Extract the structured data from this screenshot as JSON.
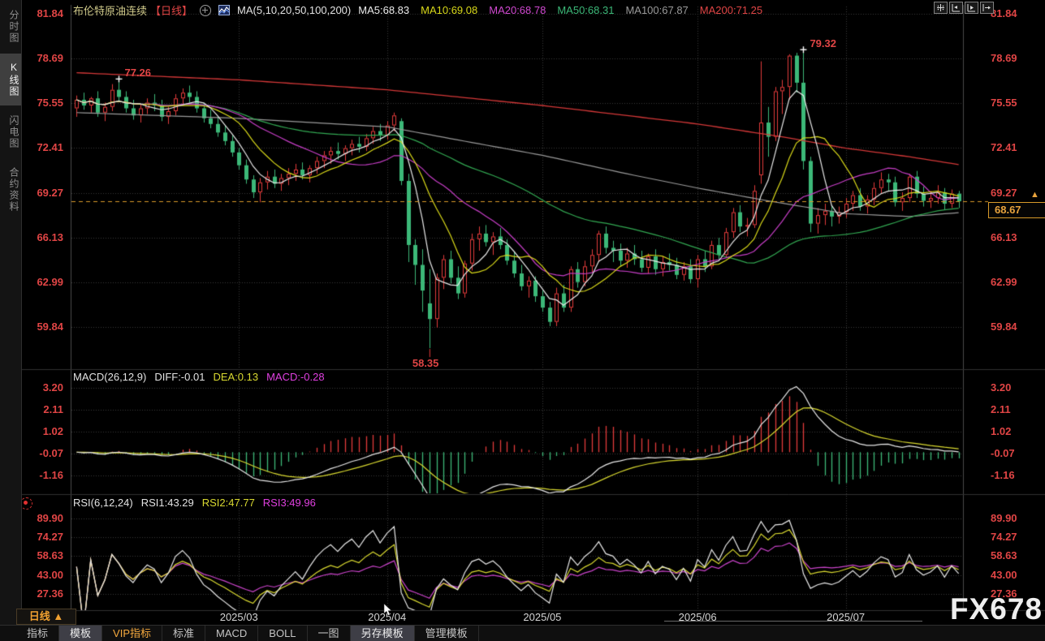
{
  "header": {
    "symbol": "布伦特原油连续",
    "period_tag": "【日线】",
    "ma_params": "MA(5,10,20,50,100,200)",
    "ma_values": [
      {
        "text": "MA5:68.83",
        "color": "#ececec"
      },
      {
        "text": "MA10:69.08",
        "color": "#d9d919"
      },
      {
        "text": "MA20:68.78",
        "color": "#d048d0"
      },
      {
        "text": "MA50:68.31",
        "color": "#3cb878"
      },
      {
        "text": "MA100:67.87",
        "color": "#9a9a9a"
      },
      {
        "text": "MA200:71.25",
        "color": "#e04545"
      }
    ],
    "window_controls": [
      "move-chart-icon",
      "compress-left-icon",
      "compress-right-icon",
      "shift-data-icon"
    ]
  },
  "sidebar": {
    "items": [
      {
        "label": "分时图",
        "active": false
      },
      {
        "label": "K线图",
        "active": true
      },
      {
        "label": "闪电图",
        "active": false
      },
      {
        "label": "合约资料",
        "active": false
      }
    ]
  },
  "toolbar": {
    "tabs": [
      {
        "label": "指标",
        "active": false,
        "accent": false
      },
      {
        "label": "模板",
        "active": true,
        "accent": false
      },
      {
        "label": "VIP指标",
        "active": false,
        "accent": true
      },
      {
        "label": "标准",
        "active": false,
        "accent": false
      },
      {
        "label": "MACD",
        "active": false,
        "accent": false
      },
      {
        "label": "BOLL",
        "active": false,
        "accent": false
      },
      {
        "label": "一图",
        "active": false,
        "accent": false
      },
      {
        "label": "另存模板",
        "active": true,
        "accent": false
      },
      {
        "label": "管理模板",
        "active": false,
        "accent": false
      }
    ]
  },
  "period_selector": {
    "label": "日线",
    "arrow": "▲"
  },
  "watermark": "FX678",
  "colors": {
    "up": "#e23b3b",
    "down": "#3cb878",
    "axis_text": "#e04545",
    "last_price": "#d89a2a",
    "grid": "#3a3a3a",
    "ma5": "#e8e8e8",
    "ma10": "#d9d919",
    "ma20": "#c73ec7",
    "ma50": "#32a852",
    "ma100": "#9a9a9a",
    "ma200": "#d43838",
    "diff_line": "#e8e8e8",
    "dea_line": "#d9d930",
    "rsi1": "#e8e8e8",
    "rsi2": "#d9d930",
    "rsi3": "#cc44cc"
  },
  "chart_data": {
    "type": "candlestick",
    "title": "布伦特原油连续 日线",
    "ylim": [
      59.84,
      81.84
    ],
    "main_axis_labels": [
      "81.84",
      "78.69",
      "75.55",
      "72.41",
      "69.27",
      "66.13",
      "62.99",
      "59.84"
    ],
    "main_axis_values": [
      81.84,
      78.69,
      75.55,
      72.41,
      69.27,
      66.13,
      62.99,
      59.84
    ],
    "macd_axis_labels": [
      "3.20",
      "2.11",
      "1.02",
      "-0.07",
      "-1.16"
    ],
    "macd_axis_values": [
      3.2,
      2.11,
      1.02,
      -0.07,
      -1.16
    ],
    "rsi_axis_labels": [
      "89.90",
      "74.27",
      "58.63",
      "43.00",
      "27.36"
    ],
    "rsi_axis_values": [
      89.9,
      74.27,
      58.63,
      43.0,
      27.36
    ],
    "x_ticks": [
      {
        "index": 23,
        "label": "2025/03"
      },
      {
        "index": 44,
        "label": "2025/04"
      },
      {
        "index": 66,
        "label": "2025/05"
      },
      {
        "index": 88,
        "label": "2025/06"
      },
      {
        "index": 109,
        "label": "2025/07"
      }
    ],
    "ma_periods": [
      5,
      10,
      20,
      50
    ],
    "ma100_keypoints": [
      [
        0,
        74.9
      ],
      [
        23,
        74.5
      ],
      [
        44,
        73.9
      ],
      [
        56,
        72.8
      ],
      [
        66,
        71.9
      ],
      [
        78,
        70.6
      ],
      [
        88,
        69.6
      ],
      [
        98,
        68.7
      ],
      [
        109,
        67.8
      ],
      [
        118,
        67.6
      ],
      [
        125,
        67.87
      ]
    ],
    "ma200_keypoints": [
      [
        0,
        77.7
      ],
      [
        23,
        77.2
      ],
      [
        44,
        76.5
      ],
      [
        66,
        75.4
      ],
      [
        88,
        74.1
      ],
      [
        100,
        73.2
      ],
      [
        109,
        72.4
      ],
      [
        118,
        71.8
      ],
      [
        125,
        71.25
      ]
    ],
    "annotations": {
      "high1": {
        "index": 6,
        "price": 77.26,
        "label": "77.26"
      },
      "high2": {
        "index": 103,
        "price": 79.32,
        "label": "79.32"
      },
      "low": {
        "index": 50,
        "price": 58.35,
        "label": "58.35"
      }
    },
    "last_price": {
      "value": 68.67,
      "label": "68.67"
    },
    "macd_panel": {
      "title": "MACD(26,12,9)",
      "params": [
        26,
        12,
        9
      ],
      "diff_label": "DIFF:-0.01",
      "dea_label": "DEA:0.13",
      "macd_label": "MACD:-0.28",
      "diff": -0.01,
      "dea": 0.13,
      "macd": -0.28
    },
    "rsi_panel": {
      "title": "RSI(6,12,24)",
      "periods": [
        6,
        12,
        24
      ],
      "labels": [
        "RSI1:43.29",
        "RSI2:47.77",
        "RSI3:49.96"
      ],
      "values": [
        43.29,
        47.77,
        49.96
      ]
    },
    "candles": [
      [
        75.2,
        76.1,
        74.6,
        75.8
      ],
      [
        75.8,
        76.3,
        75.1,
        75.4
      ],
      [
        75.4,
        76.0,
        74.9,
        75.9
      ],
      [
        75.9,
        76.4,
        74.6,
        74.9
      ],
      [
        74.9,
        75.6,
        74.3,
        75.3
      ],
      [
        75.3,
        76.9,
        75.0,
        76.5
      ],
      [
        76.5,
        77.26,
        75.7,
        76.0
      ],
      [
        76.0,
        76.4,
        74.9,
        75.2
      ],
      [
        75.2,
        75.8,
        74.4,
        74.7
      ],
      [
        74.7,
        75.5,
        74.2,
        75.2
      ],
      [
        75.2,
        75.9,
        74.8,
        75.6
      ],
      [
        75.6,
        76.2,
        75.0,
        75.4
      ],
      [
        75.4,
        75.8,
        74.3,
        74.6
      ],
      [
        74.6,
        75.3,
        74.1,
        75.0
      ],
      [
        75.0,
        76.2,
        74.7,
        75.9
      ],
      [
        75.9,
        76.6,
        75.4,
        76.3
      ],
      [
        76.3,
        76.8,
        75.6,
        76.0
      ],
      [
        76.0,
        76.4,
        74.9,
        75.2
      ],
      [
        75.2,
        75.6,
        74.2,
        74.5
      ],
      [
        74.5,
        75.1,
        73.8,
        74.1
      ],
      [
        74.1,
        74.6,
        73.2,
        73.5
      ],
      [
        73.5,
        74.0,
        72.6,
        72.9
      ],
      [
        72.9,
        73.3,
        71.8,
        72.1
      ],
      [
        72.1,
        72.4,
        70.9,
        71.2
      ],
      [
        71.2,
        71.6,
        69.9,
        70.2
      ],
      [
        70.2,
        70.5,
        68.9,
        69.3
      ],
      [
        69.3,
        70.3,
        68.6,
        70.0
      ],
      [
        70.0,
        70.8,
        69.5,
        70.4
      ],
      [
        70.4,
        70.9,
        69.6,
        69.9
      ],
      [
        69.9,
        70.6,
        69.4,
        70.3
      ],
      [
        70.3,
        71.0,
        69.8,
        70.6
      ],
      [
        70.6,
        71.3,
        70.1,
        70.9
      ],
      [
        70.9,
        71.4,
        70.2,
        70.5
      ],
      [
        70.5,
        71.2,
        70.0,
        71.0
      ],
      [
        71.0,
        71.8,
        70.6,
        71.5
      ],
      [
        71.5,
        72.2,
        71.0,
        71.9
      ],
      [
        71.9,
        72.5,
        71.3,
        72.2
      ],
      [
        72.2,
        72.8,
        71.6,
        72.0
      ],
      [
        72.0,
        72.6,
        71.5,
        72.4
      ],
      [
        72.4,
        73.0,
        71.9,
        72.7
      ],
      [
        72.7,
        73.2,
        72.1,
        72.5
      ],
      [
        72.5,
        73.4,
        72.2,
        73.1
      ],
      [
        73.1,
        73.9,
        72.7,
        73.6
      ],
      [
        73.6,
        74.1,
        72.9,
        73.3
      ],
      [
        73.3,
        74.3,
        73.0,
        74.0
      ],
      [
        74.0,
        74.9,
        73.6,
        74.7
      ],
      [
        74.3,
        74.5,
        69.8,
        70.1
      ],
      [
        70.1,
        70.6,
        64.4,
        65.6
      ],
      [
        65.6,
        66.0,
        62.8,
        64.2
      ],
      [
        64.2,
        65.3,
        60.9,
        62.4
      ],
      [
        61.5,
        63.9,
        58.35,
        60.4
      ],
      [
        60.4,
        63.6,
        59.8,
        63.3
      ],
      [
        63.3,
        64.9,
        62.5,
        64.6
      ],
      [
        64.6,
        65.2,
        62.9,
        63.3
      ],
      [
        63.3,
        64.1,
        61.8,
        62.2
      ],
      [
        62.2,
        64.5,
        61.9,
        64.3
      ],
      [
        64.3,
        66.4,
        63.8,
        66.0
      ],
      [
        66.0,
        66.9,
        65.2,
        66.4
      ],
      [
        66.4,
        67.0,
        65.5,
        65.8
      ],
      [
        65.8,
        66.5,
        64.9,
        66.2
      ],
      [
        66.2,
        66.8,
        65.3,
        65.6
      ],
      [
        65.6,
        66.0,
        64.2,
        64.5
      ],
      [
        64.5,
        65.1,
        63.3,
        63.6
      ],
      [
        63.6,
        64.2,
        62.4,
        62.7
      ],
      [
        62.7,
        63.4,
        61.9,
        63.1
      ],
      [
        63.1,
        63.4,
        61.6,
        62.0
      ],
      [
        62.0,
        62.4,
        60.9,
        61.2
      ],
      [
        61.2,
        61.6,
        59.9,
        60.2
      ],
      [
        60.2,
        62.6,
        59.9,
        62.2
      ],
      [
        62.2,
        62.8,
        60.9,
        61.2
      ],
      [
        61.2,
        64.1,
        60.9,
        63.9
      ],
      [
        63.9,
        64.4,
        62.6,
        63.0
      ],
      [
        63.0,
        64.5,
        62.7,
        64.1
      ],
      [
        64.1,
        65.3,
        63.7,
        64.9
      ],
      [
        64.9,
        66.6,
        64.4,
        66.4
      ],
      [
        66.4,
        66.9,
        65.0,
        65.4
      ],
      [
        65.4,
        65.9,
        64.4,
        65.2
      ],
      [
        65.2,
        65.7,
        64.1,
        64.5
      ],
      [
        64.5,
        65.4,
        64.0,
        65.0
      ],
      [
        65.0,
        65.6,
        64.2,
        64.6
      ],
      [
        64.6,
        65.2,
        63.7,
        64.0
      ],
      [
        64.0,
        65.0,
        63.6,
        64.8
      ],
      [
        64.8,
        65.3,
        63.5,
        63.9
      ],
      [
        63.9,
        64.8,
        63.4,
        64.4
      ],
      [
        64.4,
        65.0,
        63.8,
        64.2
      ],
      [
        64.2,
        64.7,
        63.2,
        63.5
      ],
      [
        63.5,
        64.4,
        63.1,
        64.1
      ],
      [
        64.1,
        64.6,
        62.9,
        63.2
      ],
      [
        63.2,
        64.9,
        62.6,
        64.6
      ],
      [
        64.6,
        65.2,
        63.7,
        64.1
      ],
      [
        64.1,
        65.9,
        63.9,
        65.6
      ],
      [
        65.6,
        66.1,
        64.5,
        64.9
      ],
      [
        64.9,
        66.8,
        64.7,
        66.5
      ],
      [
        66.5,
        68.2,
        66.1,
        67.9
      ],
      [
        67.9,
        68.4,
        66.5,
        66.9
      ],
      [
        66.9,
        67.5,
        66.2,
        67.0
      ],
      [
        67.0,
        69.8,
        66.8,
        69.4
      ],
      [
        70.5,
        78.5,
        69.9,
        74.2
      ],
      [
        74.2,
        75.3,
        71.8,
        73.2
      ],
      [
        73.2,
        76.7,
        72.9,
        76.4
      ],
      [
        76.4,
        77.2,
        74.8,
        76.7
      ],
      [
        76.7,
        79.0,
        75.8,
        78.9
      ],
      [
        78.9,
        79.1,
        76.3,
        77.0
      ],
      [
        77.0,
        79.32,
        70.9,
        71.5
      ],
      [
        71.5,
        71.8,
        66.5,
        67.1
      ],
      [
        67.1,
        68.2,
        66.4,
        67.7
      ],
      [
        67.7,
        68.5,
        67.0,
        68.0
      ],
      [
        68.0,
        68.4,
        66.9,
        67.6
      ],
      [
        67.6,
        68.3,
        67.1,
        67.9
      ],
      [
        67.9,
        68.9,
        67.5,
        68.5
      ],
      [
        68.5,
        69.4,
        68.0,
        69.1
      ],
      [
        69.1,
        69.6,
        68.0,
        68.3
      ],
      [
        68.3,
        69.1,
        67.8,
        68.8
      ],
      [
        68.8,
        70.0,
        68.4,
        69.6
      ],
      [
        69.6,
        70.7,
        69.2,
        70.2
      ],
      [
        70.2,
        70.6,
        69.4,
        70.0
      ],
      [
        70.0,
        70.4,
        68.3,
        68.6
      ],
      [
        68.6,
        69.3,
        68.0,
        68.9
      ],
      [
        68.9,
        70.6,
        68.6,
        70.4
      ],
      [
        70.4,
        70.8,
        68.9,
        69.2
      ],
      [
        69.2,
        69.7,
        68.3,
        68.7
      ],
      [
        68.7,
        69.4,
        68.2,
        68.9
      ],
      [
        68.9,
        69.8,
        68.5,
        69.3
      ],
      [
        69.3,
        69.6,
        68.1,
        68.5
      ],
      [
        68.5,
        69.5,
        68.2,
        69.2
      ],
      [
        69.2,
        69.4,
        68.2,
        68.67
      ]
    ]
  }
}
